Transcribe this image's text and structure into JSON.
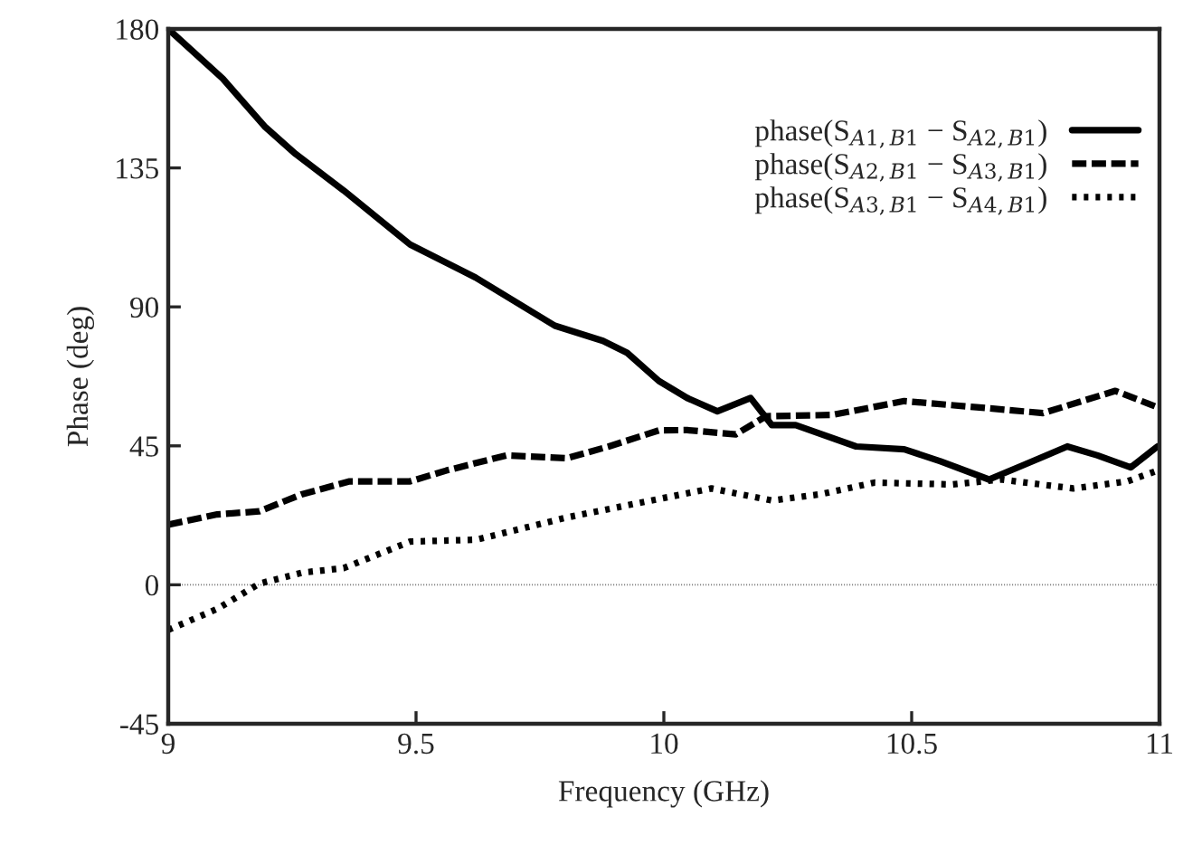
{
  "chart_data": {
    "type": "line",
    "xlabel": "Frequency (GHz)",
    "ylabel": "Phase (deg)",
    "xlim": [
      9,
      11
    ],
    "xticks": [
      9,
      9.5,
      10,
      10.5,
      11
    ],
    "ylim": [
      -45,
      180
    ],
    "yticks": [
      -45,
      0,
      45,
      90,
      135,
      180
    ],
    "grid": false,
    "legend": "top right",
    "marker": "none",
    "ref_lines": [
      {
        "axis": "y",
        "value": 0,
        "line_style": "dotted",
        "color": "#808080"
      }
    ],
    "series": [
      {
        "name": "phase(S$_{A1,B1}$ − S$_{A2,B1}$)",
        "color": "#000000",
        "line_style": "solid",
        "x": [
          9,
          9.11,
          9.196,
          9.257,
          9.354,
          9.488,
          9.62,
          9.78,
          9.877,
          9.926,
          9.99,
          10.047,
          10.108,
          10.175,
          10.218,
          10.266,
          10.388,
          10.485,
          10.558,
          10.656,
          10.729,
          10.814,
          10.875,
          10.942,
          10.996
        ],
        "values": [
          180,
          163.9,
          148.2,
          139.5,
          127.7,
          110.2,
          99.5,
          83.9,
          79,
          75.1,
          66,
          60.5,
          56.2,
          60.5,
          51.7,
          51.7,
          44.8,
          43.9,
          40,
          34.1,
          39,
          44.8,
          41.9,
          38,
          44.8
        ]
      },
      {
        "name": "phase(S$_{A2,B1}$ − S$_{A3,B1}$)",
        "color": "#000000",
        "line_style": "dashed",
        "x": [
          9,
          9.099,
          9.184,
          9.269,
          9.366,
          9.488,
          9.561,
          9.682,
          9.804,
          9.889,
          9.99,
          10.047,
          10.145,
          10.206,
          10.339,
          10.485,
          10.631,
          10.765,
          10.911,
          10.996
        ],
        "values": [
          19.5,
          22.8,
          23.8,
          29.3,
          33.5,
          33.5,
          37,
          41.9,
          41,
          44.8,
          50,
          50.1,
          48.7,
          54.6,
          55,
          59.5,
          57.5,
          55.6,
          62.8,
          57.5
        ]
      },
      {
        "name": "phase(S$_{A3,B1}$ − S$_{A4,B1}$)",
        "color": "#000000",
        "line_style": "dotted",
        "x": [
          9,
          9.099,
          9.184,
          9.269,
          9.354,
          9.488,
          9.622,
          9.804,
          9.99,
          10.096,
          10.218,
          10.315,
          10.425,
          10.583,
          10.68,
          10.826,
          10.935,
          10.996
        ],
        "values": [
          -14.6,
          -7.8,
          0.4,
          3.9,
          5.4,
          14,
          14.6,
          21.8,
          27.8,
          31.2,
          27.3,
          29.3,
          33.1,
          32.5,
          34.1,
          31.2,
          33.5,
          37
        ]
      }
    ]
  }
}
